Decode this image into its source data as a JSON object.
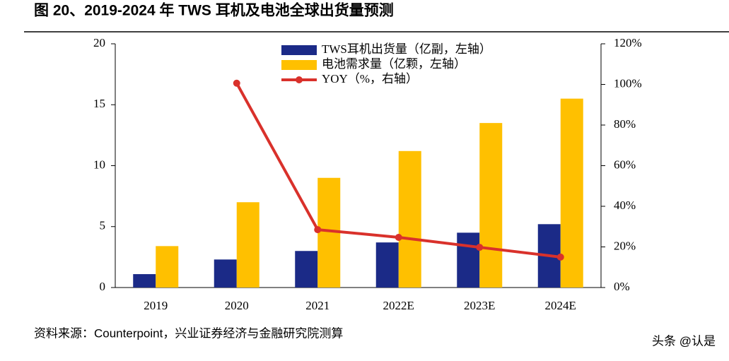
{
  "chart_data": {
    "type": "bar-line",
    "title": "图 20、2019-2024 年 TWS 耳机及电池全球出货量预测",
    "source": "资料来源：Counterpoint，兴业证券经济与金融研究院测算",
    "watermark": "头条 @认是",
    "categories": [
      "2019",
      "2020",
      "2021",
      "2022E",
      "2023E",
      "2024E"
    ],
    "series": [
      {
        "name": "TWS耳机出货量（亿副，左轴）",
        "color": "#1b2a87",
        "type": "bar",
        "values": [
          1.1,
          2.3,
          3.0,
          3.7,
          4.5,
          5.2
        ]
      },
      {
        "name": "电池需求量（亿颗，左轴）",
        "color": "#ffc000",
        "type": "bar",
        "values": [
          3.4,
          7.0,
          9.0,
          11.2,
          13.5,
          15.5
        ]
      },
      {
        "name": "YOY（%，右轴）",
        "color": "#d9312b",
        "type": "line",
        "axis": "y2",
        "values": [
          null,
          100.6,
          28.5,
          24.7,
          19.8,
          15.0
        ]
      }
    ],
    "ylim": [
      0,
      20
    ],
    "yticks": [
      0,
      5,
      10,
      15,
      20
    ],
    "y2lim": [
      0,
      120
    ],
    "y2ticks": [
      {
        "value": 0,
        "label": "0%"
      },
      {
        "value": 20,
        "label": "20%"
      },
      {
        "value": 40,
        "label": "40%"
      },
      {
        "value": 60,
        "label": "60%"
      },
      {
        "value": 80,
        "label": "80%"
      },
      {
        "value": 100,
        "label": "100%"
      },
      {
        "value": 120,
        "label": "120%"
      }
    ]
  }
}
